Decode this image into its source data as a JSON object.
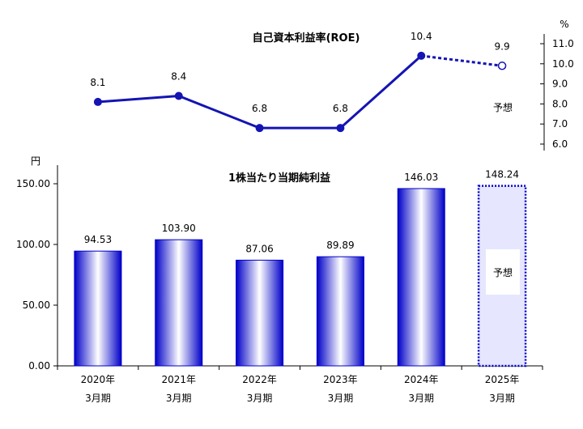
{
  "chart_data": [
    {
      "type": "line",
      "title": "自己資本利益率(ROE)",
      "unit": "%",
      "forecast_label": "予想",
      "ylim": [
        6.0,
        11.0
      ],
      "yticks": [
        "6.0",
        "7.0",
        "8.0",
        "9.0",
        "10.0",
        "11.0"
      ],
      "series": [
        {
          "values": [
            8.1,
            8.4,
            6.8,
            6.8,
            10.4,
            9.9
          ],
          "labels": [
            "8.1",
            "8.4",
            "6.8",
            "6.8",
            "10.4",
            "9.9"
          ],
          "forecast_from_index": 5
        }
      ],
      "color": "#1414b4",
      "grid": false
    },
    {
      "type": "bar",
      "title": "1株当たり当期純利益",
      "unit": "円",
      "forecast_label": "予想",
      "categories": [
        [
          "2020年",
          "3月期"
        ],
        [
          "2021年",
          "3月期"
        ],
        [
          "2022年",
          "3月期"
        ],
        [
          "2023年",
          "3月期"
        ],
        [
          "2024年",
          "3月期"
        ],
        [
          "2025年",
          "3月期"
        ]
      ],
      "values": [
        94.53,
        103.9,
        87.06,
        89.89,
        146.03,
        148.24
      ],
      "labels": [
        "94.53",
        "103.90",
        "87.06",
        "89.89",
        "146.03",
        "148.24"
      ],
      "forecast_index": 5,
      "ylim": [
        0,
        160
      ],
      "yticks": [
        "0.00",
        "50.00",
        "100.00",
        "150.00"
      ],
      "color": "#0000c8",
      "forecast_fill": "#e6e6ff",
      "grid": false
    }
  ]
}
